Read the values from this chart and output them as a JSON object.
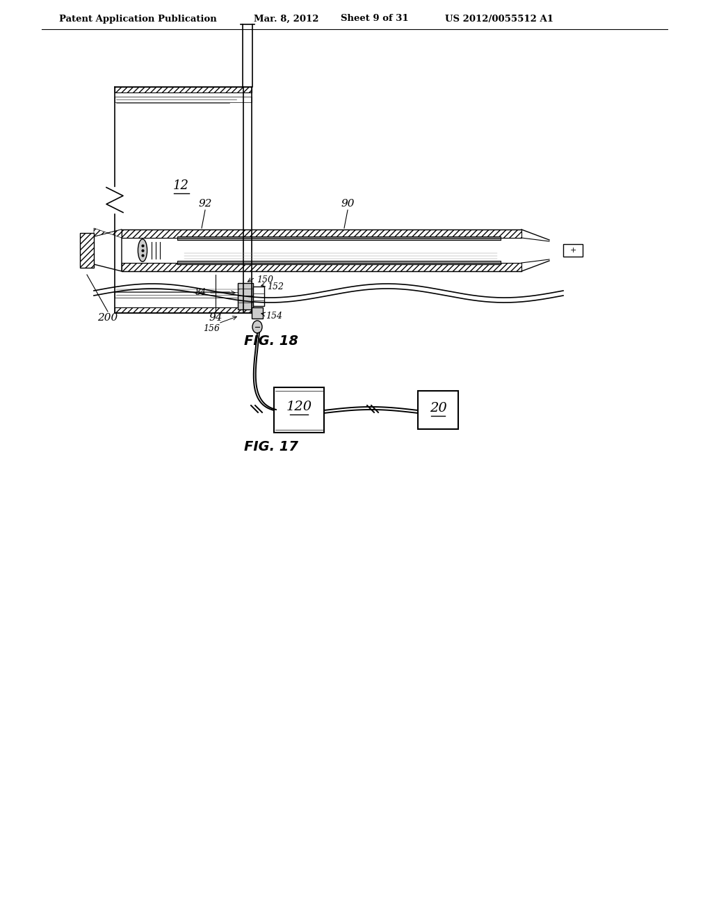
{
  "bg_color": "#ffffff",
  "header_text": "Patent Application Publication",
  "header_date": "Mar. 8, 2012",
  "header_sheet": "Sheet 9 of 31",
  "header_patent": "US 2012/0055512 A1",
  "fig17_label": "FIG. 17",
  "fig18_label": "FIG. 18",
  "label_12": "12",
  "label_150": "150",
  "label_152": "152",
  "label_84": "84",
  "label_156": "156",
  "label_154": "154",
  "label_120": "120",
  "label_20": "20",
  "label_92": "92",
  "label_90": "90",
  "label_94": "94",
  "label_200": "200"
}
